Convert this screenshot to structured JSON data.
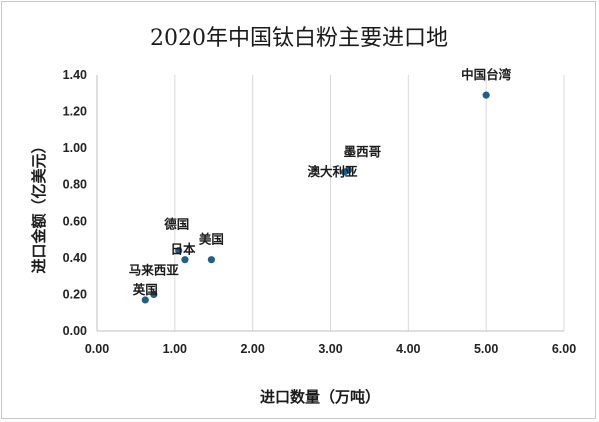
{
  "chart_data": {
    "type": "scatter",
    "title": "2020年中国钛白粉主要进口地",
    "xlabel": "进口数量（万吨）",
    "ylabel": "进口金额（亿美元）",
    "xlim": [
      0,
      6
    ],
    "ylim": [
      0,
      1.4
    ],
    "x_ticks": [
      "0.00",
      "1.00",
      "2.00",
      "3.00",
      "4.00",
      "5.00",
      "6.00"
    ],
    "y_ticks": [
      "0.00",
      "0.20",
      "0.40",
      "0.60",
      "0.80",
      "1.00",
      "1.20",
      "1.40"
    ],
    "grid": "vertical",
    "marker_color": "#1f5f8b",
    "points": [
      {
        "label": "中国台湾",
        "x": 5.0,
        "y": 1.29
      },
      {
        "label": "墨西哥",
        "x": 3.23,
        "y": 0.88
      },
      {
        "label": "澳大利亚",
        "x": 3.18,
        "y": 0.87
      },
      {
        "label": "德国",
        "x": 1.05,
        "y": 0.44
      },
      {
        "label": "日本",
        "x": 1.13,
        "y": 0.39
      },
      {
        "label": "美国",
        "x": 1.47,
        "y": 0.39
      },
      {
        "label": "马来西亚",
        "x": 0.73,
        "y": 0.2
      },
      {
        "label": "英国",
        "x": 0.62,
        "y": 0.17
      }
    ]
  }
}
